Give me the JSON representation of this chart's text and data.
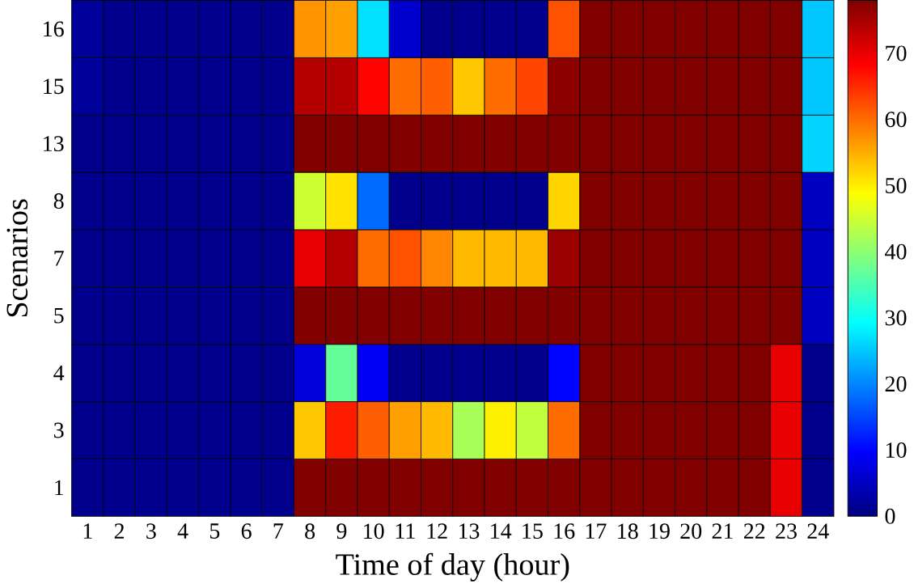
{
  "chart_data": {
    "type": "heatmap",
    "xlabel": "Time of day (hour)",
    "ylabel": "Scenarios",
    "categories": [
      "1",
      "2",
      "3",
      "4",
      "5",
      "6",
      "7",
      "8",
      "9",
      "10",
      "11",
      "12",
      "13",
      "14",
      "15",
      "16",
      "17",
      "18",
      "19",
      "20",
      "21",
      "22",
      "23",
      "24"
    ],
    "y_categories": [
      "16",
      "15",
      "13",
      "8",
      "7",
      "5",
      "4",
      "3",
      "1"
    ],
    "cells": [
      [
        2,
        1,
        1,
        1,
        1,
        1,
        1,
        57,
        56,
        27,
        6,
        1,
        1,
        1,
        1,
        62,
        78,
        78,
        78,
        78,
        78,
        78,
        78,
        25
      ],
      [
        2,
        1,
        1,
        1,
        1,
        1,
        1,
        74,
        74,
        68,
        60,
        61,
        53,
        60,
        63,
        77,
        78,
        78,
        78,
        78,
        78,
        78,
        78,
        25
      ],
      [
        1,
        1,
        1,
        1,
        1,
        1,
        1,
        78,
        78,
        78,
        78,
        78,
        78,
        78,
        78,
        78,
        78,
        78,
        78,
        78,
        78,
        78,
        78,
        26
      ],
      [
        1,
        1,
        1,
        1,
        1,
        1,
        1,
        45,
        51,
        18,
        1,
        1,
        1,
        1,
        1,
        52,
        78,
        78,
        78,
        78,
        78,
        78,
        78,
        5
      ],
      [
        1,
        1,
        1,
        1,
        1,
        1,
        1,
        70,
        74,
        60,
        62,
        58,
        54,
        54,
        54,
        76,
        78,
        78,
        78,
        78,
        78,
        78,
        78,
        5
      ],
      [
        1,
        1,
        1,
        1,
        1,
        1,
        1,
        78,
        78,
        78,
        78,
        78,
        78,
        78,
        78,
        78,
        78,
        78,
        78,
        78,
        78,
        78,
        78,
        5
      ],
      [
        1,
        1,
        1,
        1,
        1,
        1,
        1,
        7,
        37,
        9,
        1,
        1,
        1,
        1,
        1,
        10,
        78,
        78,
        78,
        78,
        78,
        78,
        70,
        1
      ],
      [
        1,
        1,
        1,
        1,
        1,
        1,
        1,
        53,
        66,
        61,
        56,
        54,
        42,
        50,
        44,
        60,
        78,
        78,
        78,
        78,
        78,
        78,
        70,
        1
      ],
      [
        1,
        1,
        1,
        1,
        1,
        1,
        1,
        78,
        78,
        78,
        78,
        78,
        78,
        78,
        78,
        78,
        78,
        78,
        78,
        78,
        78,
        78,
        70,
        1
      ]
    ],
    "clim": [
      0,
      78
    ],
    "cticks": [
      0,
      10,
      20,
      30,
      40,
      50,
      60,
      70
    ]
  }
}
